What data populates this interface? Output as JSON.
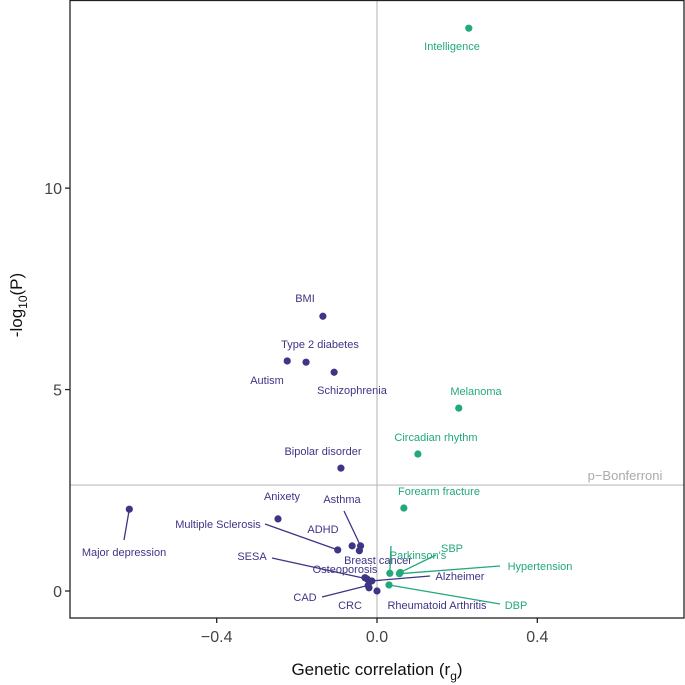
{
  "chart_data": {
    "type": "scatter",
    "title": "",
    "xlabel": "Genetic correlation (r",
    "xlabel_sub": "g",
    "xlabel_close": ")",
    "ylabel": "-log",
    "ylabel_sub": "10",
    "ylabel_close": "(P)",
    "xlim": [
      -0.766,
      0.766
    ],
    "ylim": [
      -0.67,
      14.67
    ],
    "x_ticks": [
      {
        "v": -0.4,
        "label": "−0.4"
      },
      {
        "v": 0.0,
        "label": "0.0"
      },
      {
        "v": 0.4,
        "label": "0.4"
      }
    ],
    "y_ticks": [
      {
        "v": 0,
        "label": "0"
      },
      {
        "v": 5,
        "label": "5"
      },
      {
        "v": 10,
        "label": "10"
      }
    ],
    "grid": false,
    "reference_lines": {
      "vertical_x": 0,
      "horizontal_y": 2.63,
      "horizontal_label": "p−Bonferroni"
    },
    "colors": {
      "negative": "#3d3585",
      "positive": "#22a87b",
      "reference": "#bdbdbd"
    },
    "points": [
      {
        "name": "Intelligence",
        "x": 0.229,
        "y": 13.97,
        "group": "positive"
      },
      {
        "name": "BMI",
        "x": -0.135,
        "y": 6.82,
        "group": "negative"
      },
      {
        "name": "Type 2 diabetes",
        "x": -0.177,
        "y": 5.68,
        "group": "negative"
      },
      {
        "name": "Autism",
        "x": -0.224,
        "y": 5.71,
        "group": "negative"
      },
      {
        "name": "Schizophrenia",
        "x": -0.107,
        "y": 5.43,
        "group": "negative"
      },
      {
        "name": "Melanoma",
        "x": 0.204,
        "y": 4.54,
        "group": "positive"
      },
      {
        "name": "Circadian rhythm",
        "x": 0.102,
        "y": 3.4,
        "group": "positive"
      },
      {
        "name": "Bipolar disorder",
        "x": -0.09,
        "y": 3.05,
        "group": "negative"
      },
      {
        "name": "Forearm fracture",
        "x": 0.067,
        "y": 2.06,
        "group": "positive"
      },
      {
        "name": "Major depression",
        "x": -0.618,
        "y": 2.03,
        "group": "negative"
      },
      {
        "name": "Anixety",
        "x": -0.247,
        "y": 1.79,
        "group": "negative"
      },
      {
        "name": "Multiple Sclerosis",
        "x": -0.098,
        "y": 1.02,
        "group": "negative"
      },
      {
        "name": "ADHD",
        "x": -0.062,
        "y": 1.12,
        "group": "negative"
      },
      {
        "name": "Asthma",
        "x": -0.041,
        "y": 1.12,
        "group": "negative"
      },
      {
        "name": "Breast cancer",
        "x": -0.044,
        "y": 1.0,
        "group": "negative"
      },
      {
        "name": "Parkinson's",
        "x": 0.032,
        "y": 0.44,
        "group": "positive"
      },
      {
        "name": "SBP",
        "x": 0.058,
        "y": 0.46,
        "group": "positive"
      },
      {
        "name": "Hypertension",
        "x": 0.056,
        "y": 0.43,
        "group": "positive"
      },
      {
        "name": "Osteoporosis",
        "x": -0.03,
        "y": 0.33,
        "group": "negative"
      },
      {
        "name": "SESA",
        "x": -0.025,
        "y": 0.3,
        "group": "negative"
      },
      {
        "name": "Alzheimer",
        "x": -0.013,
        "y": 0.25,
        "group": "negative"
      },
      {
        "name": "CAD",
        "x": -0.022,
        "y": 0.14,
        "group": "negative"
      },
      {
        "name": "CRC",
        "x": -0.02,
        "y": 0.08,
        "group": "negative"
      },
      {
        "name": "Rheumatoid Arthritis",
        "x": 0.0,
        "y": 0.0,
        "group": "negative"
      },
      {
        "name": "DBP",
        "x": 0.03,
        "y": 0.15,
        "group": "positive"
      }
    ]
  }
}
